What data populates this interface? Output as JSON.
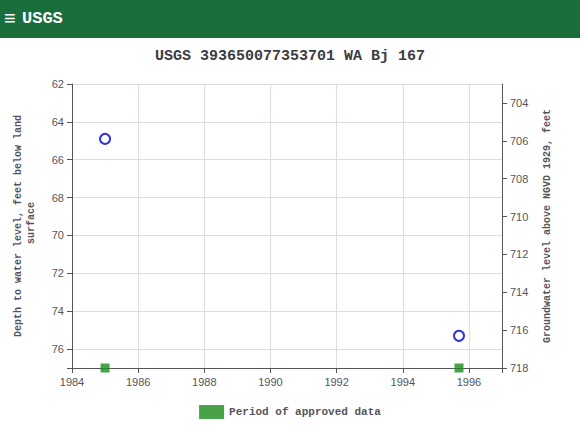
{
  "chart_data": {
    "type": "scatter",
    "title": "USGS 393650077353701 WA Bj 167",
    "annotations": [
      "≡",
      "USGS"
    ],
    "xlabel": null,
    "ylabel": "Depth to water level, feet below land\n surface",
    "y2label": "Groundwater level above NGVD 1929, feet",
    "xlim": [
      1984,
      1997
    ],
    "xticks": [
      1984,
      1986,
      1988,
      1990,
      1992,
      1994,
      1996
    ],
    "ylim": [
      77,
      62
    ],
    "yticks": [
      62,
      64,
      66,
      68,
      70,
      72,
      74,
      76
    ],
    "y2lim": [
      718,
      703
    ],
    "y2ticks": [
      704,
      706,
      708,
      710,
      712,
      714,
      716,
      718
    ],
    "grid": true,
    "legend": "bottom",
    "series": [
      {
        "type": "scatter",
        "marker": "emptyCircle",
        "color": "#0000cc",
        "x": [
          1985.0,
          1995.7
        ],
        "values": [
          64.9,
          75.3
        ]
      },
      {
        "name": "Period of approved data",
        "type": "scatter",
        "marker": "square",
        "color": "#1a8c1a",
        "x": [
          1985.0,
          1995.7
        ],
        "values": [
          77,
          77
        ]
      }
    ]
  }
}
